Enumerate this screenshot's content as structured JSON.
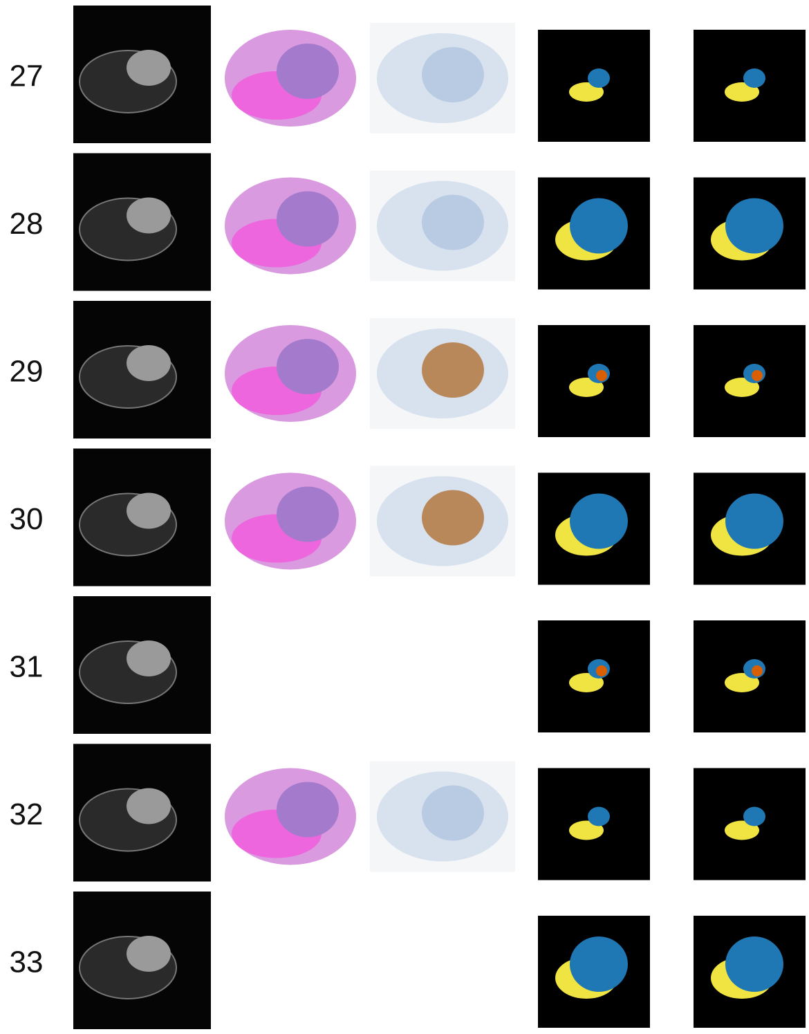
{
  "rows": [
    {
      "label": "27"
    },
    {
      "label": "28"
    },
    {
      "label": "29"
    },
    {
      "label": "30"
    },
    {
      "label": "31"
    },
    {
      "label": "32"
    },
    {
      "label": "33"
    }
  ]
}
